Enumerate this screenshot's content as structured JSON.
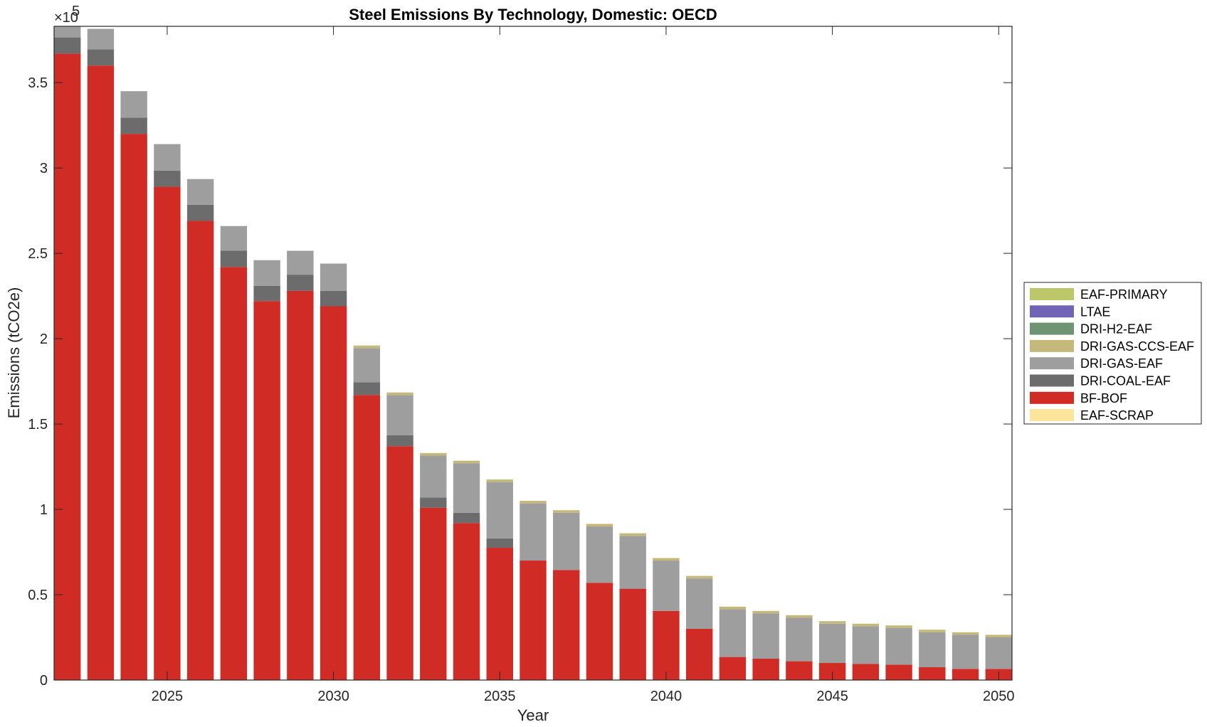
{
  "chart_data": {
    "type": "bar",
    "stacked": true,
    "title": "Steel Emissions By Technology, Domestic: OECD",
    "xlabel": "Year",
    "ylabel": "Emissions (tCO2e)",
    "y_exponent_label": "×10",
    "y_exponent_power": "5",
    "x": [
      2022,
      2023,
      2024,
      2025,
      2026,
      2027,
      2028,
      2029,
      2030,
      2031,
      2032,
      2033,
      2034,
      2035,
      2036,
      2037,
      2038,
      2039,
      2040,
      2041,
      2042,
      2043,
      2044,
      2045,
      2046,
      2047,
      2048,
      2049,
      2050
    ],
    "xlim": [
      2021.6,
      2050.4
    ],
    "ylim": [
      0,
      3.83
    ],
    "xticks": [
      2025,
      2030,
      2035,
      2040,
      2045,
      2050
    ],
    "xtick_labels": [
      "2025",
      "2030",
      "2035",
      "2040",
      "2045",
      "2050"
    ],
    "yticks": [
      0,
      0.5,
      1,
      1.5,
      2,
      2.5,
      3,
      3.5
    ],
    "ytick_labels": [
      "0",
      "0.5",
      "1",
      "1.5",
      "2",
      "2.5",
      "3",
      "3.5"
    ],
    "grid": false,
    "legend_position": "right",
    "legend_entries": [
      "EAF-PRIMARY",
      "LTAE",
      "DRI-H2-EAF",
      "DRI-GAS-CCS-EAF",
      "DRI-GAS-EAF",
      "DRI-COAL-EAF",
      "BF-BOF",
      "EAF-SCRAP"
    ],
    "series": [
      {
        "name": "EAF-SCRAP",
        "color": "#fce49a",
        "values": [
          0,
          0,
          0,
          0,
          0,
          0,
          0,
          0,
          0,
          0,
          0,
          0,
          0,
          0,
          0,
          0,
          0,
          0,
          0,
          0,
          0,
          0,
          0,
          0,
          0,
          0,
          0,
          0,
          0
        ]
      },
      {
        "name": "BF-BOF",
        "color": "#d12b26",
        "values": [
          3.67,
          3.6,
          3.2,
          2.89,
          2.69,
          2.42,
          2.22,
          2.28,
          2.19,
          1.67,
          1.37,
          1.01,
          0.92,
          0.775,
          0.7,
          0.645,
          0.57,
          0.535,
          0.405,
          0.3,
          0.135,
          0.125,
          0.11,
          0.1,
          0.095,
          0.09,
          0.075,
          0.065,
          0.065
        ]
      },
      {
        "name": "DRI-COAL-EAF",
        "color": "#6c6c6c",
        "values": [
          0.095,
          0.095,
          0.095,
          0.095,
          0.095,
          0.095,
          0.09,
          0.095,
          0.09,
          0.075,
          0.065,
          0.06,
          0.06,
          0.055,
          0,
          0,
          0,
          0,
          0,
          0,
          0,
          0,
          0,
          0,
          0,
          0,
          0,
          0,
          0
        ]
      },
      {
        "name": "DRI-GAS-EAF",
        "color": "#9e9e9e",
        "values": [
          0.08,
          0.12,
          0.155,
          0.155,
          0.15,
          0.145,
          0.15,
          0.14,
          0.16,
          0.2,
          0.235,
          0.245,
          0.29,
          0.33,
          0.335,
          0.335,
          0.33,
          0.31,
          0.295,
          0.295,
          0.28,
          0.265,
          0.255,
          0.23,
          0.22,
          0.215,
          0.205,
          0.2,
          0.185
        ]
      },
      {
        "name": "DRI-GAS-CCS-EAF",
        "color": "#c4b87a",
        "values": [
          0,
          0,
          0,
          0,
          0,
          0,
          0,
          0,
          0,
          0.015,
          0.015,
          0.015,
          0.015,
          0.015,
          0.015,
          0.015,
          0.015,
          0.015,
          0.015,
          0.015,
          0.015,
          0.015,
          0.015,
          0.015,
          0.015,
          0.015,
          0.015,
          0.015,
          0.015
        ]
      },
      {
        "name": "DRI-H2-EAF",
        "color": "#6e9474",
        "values": [
          0,
          0,
          0,
          0,
          0,
          0,
          0,
          0,
          0,
          0,
          0,
          0,
          0,
          0,
          0,
          0,
          0,
          0,
          0,
          0,
          0,
          0,
          0,
          0,
          0,
          0,
          0,
          0,
          0
        ]
      },
      {
        "name": "LTAE",
        "color": "#7163b6",
        "values": [
          0,
          0,
          0,
          0,
          0,
          0,
          0,
          0,
          0,
          0,
          0,
          0,
          0,
          0,
          0,
          0,
          0,
          0,
          0,
          0,
          0,
          0,
          0,
          0,
          0,
          0,
          0,
          0,
          0
        ]
      },
      {
        "name": "EAF-PRIMARY",
        "color": "#bcc76a",
        "values": [
          0,
          0,
          0,
          0,
          0,
          0,
          0,
          0,
          0,
          0,
          0,
          0,
          0,
          0,
          0,
          0,
          0,
          0,
          0,
          0,
          0,
          0,
          0,
          0,
          0,
          0,
          0,
          0,
          0
        ]
      }
    ]
  }
}
